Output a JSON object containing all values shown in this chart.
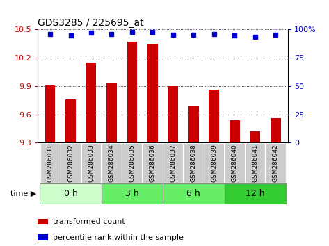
{
  "title": "GDS3285 / 225695_at",
  "samples": [
    "GSM286031",
    "GSM286032",
    "GSM286033",
    "GSM286034",
    "GSM286035",
    "GSM286036",
    "GSM286037",
    "GSM286038",
    "GSM286039",
    "GSM286040",
    "GSM286041",
    "GSM286042"
  ],
  "bar_values": [
    9.91,
    9.76,
    10.15,
    9.93,
    10.37,
    10.35,
    9.9,
    9.69,
    9.86,
    9.54,
    9.42,
    9.56
  ],
  "percentile_y_left": [
    10.455,
    10.44,
    10.468,
    10.455,
    10.476,
    10.476,
    10.445,
    10.445,
    10.455,
    10.435,
    10.425,
    10.445
  ],
  "ylim": [
    9.3,
    10.5
  ],
  "yticks": [
    9.3,
    9.6,
    9.9,
    10.2,
    10.5
  ],
  "right_yticks_pct": [
    0,
    25,
    50,
    75,
    100
  ],
  "bar_color": "#cc0000",
  "percentile_color": "#0000cc",
  "groups": [
    {
      "label": "0 h",
      "start": 0,
      "end": 3,
      "color": "#ccffcc"
    },
    {
      "label": "3 h",
      "start": 3,
      "end": 6,
      "color": "#66ee66"
    },
    {
      "label": "6 h",
      "start": 6,
      "end": 9,
      "color": "#66ee66"
    },
    {
      "label": "12 h",
      "start": 9,
      "end": 12,
      "color": "#33cc33"
    }
  ],
  "time_label": "time",
  "legend_bar_label": "transformed count",
  "legend_pct_label": "percentile rank within the sample",
  "grid_color": "#000000",
  "background_color": "#ffffff",
  "xtick_bg_color": "#cccccc",
  "group_border_color": "#888888"
}
